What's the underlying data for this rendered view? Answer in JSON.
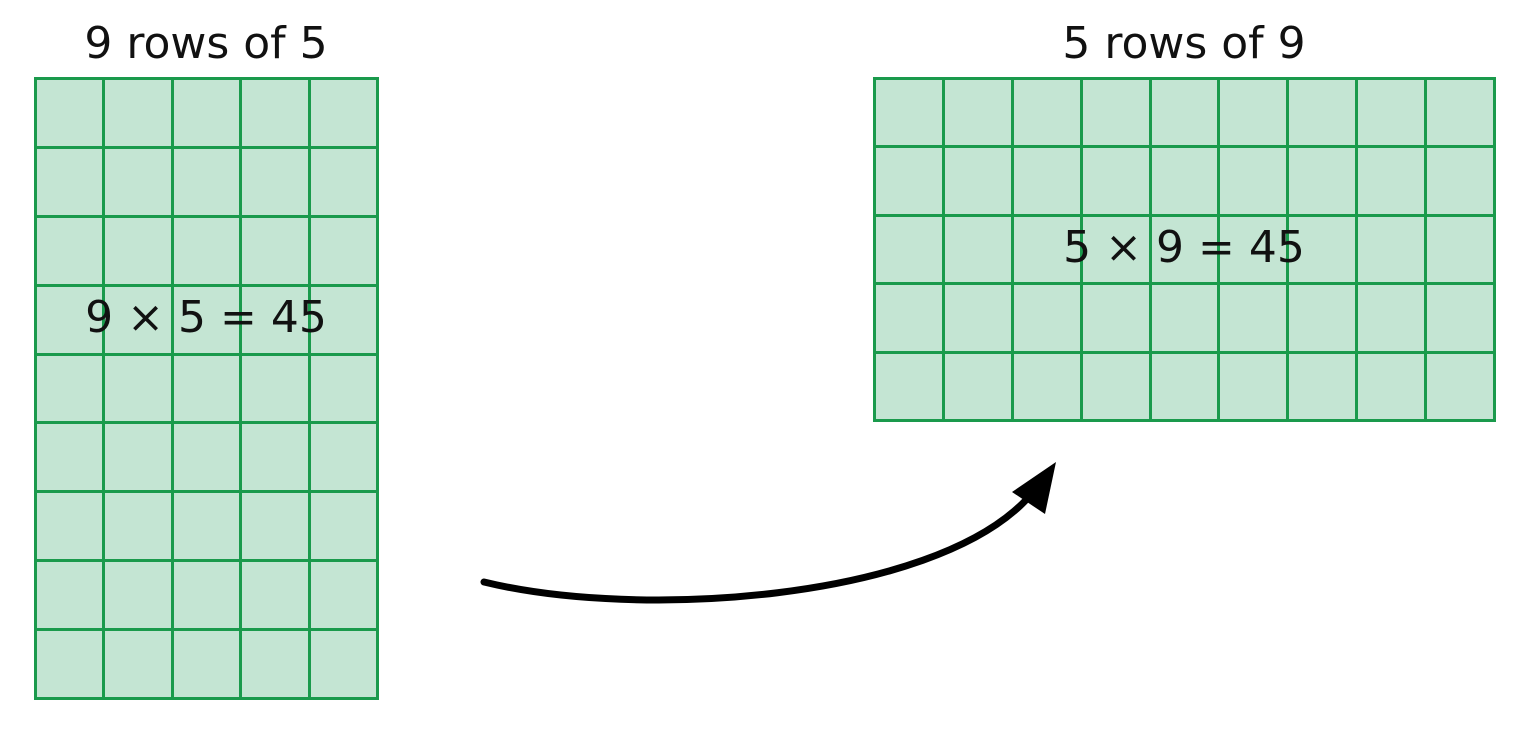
{
  "left_array": {
    "title": "9 rows of 5",
    "rows": 9,
    "columns": 5,
    "equation": "9 × 5 = 45"
  },
  "right_array": {
    "title": "5 rows of 9",
    "rows": 5,
    "columns": 9,
    "equation": "5 × 9 = 45"
  },
  "colors": {
    "cell_fill": "#c4e5d3",
    "grid_line": "#1a9a4c",
    "arrow": "#000000"
  },
  "arrow_icon": "curved-arrow-icon"
}
